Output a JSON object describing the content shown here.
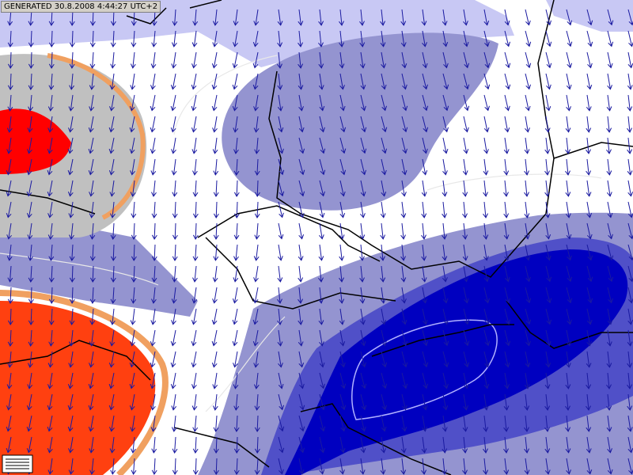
{
  "header": {
    "label": "GENERATED 30.8.2008 4:44:27 UTC+2"
  }
}
